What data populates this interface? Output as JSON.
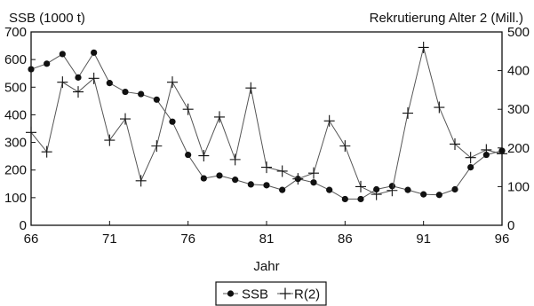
{
  "chart_data": {
    "type": "line",
    "title": "",
    "xlabel": "Jahr",
    "ylabel_left": "SSB (1000 t)",
    "ylabel_right": "Rekrutierung Alter 2 (Mill.)",
    "xlim": [
      66,
      96
    ],
    "ylim_left": [
      0,
      700
    ],
    "ylim_right": [
      0,
      500
    ],
    "x_ticks": [
      "66",
      "71",
      "76",
      "81",
      "86",
      "91",
      "96"
    ],
    "y_ticks_left": [
      "0",
      "100",
      "200",
      "300",
      "400",
      "500",
      "600",
      "700"
    ],
    "y_ticks_right": [
      "0",
      "100",
      "200",
      "300",
      "400",
      "500"
    ],
    "grid": false,
    "legend_position": "bottom-center",
    "x": [
      66,
      67,
      68,
      69,
      70,
      71,
      72,
      73,
      74,
      75,
      76,
      77,
      78,
      79,
      80,
      81,
      82,
      83,
      84,
      85,
      86,
      87,
      88,
      89,
      90,
      91,
      92,
      93,
      94,
      95,
      96
    ],
    "series": [
      {
        "name": "SSB",
        "axis": "left",
        "marker": "dot",
        "values": [
          565,
          585,
          620,
          535,
          625,
          515,
          483,
          475,
          455,
          375,
          255,
          170,
          180,
          165,
          148,
          145,
          128,
          168,
          155,
          128,
          95,
          95,
          130,
          142,
          128,
          112,
          110,
          130,
          210,
          255,
          270
        ]
      },
      {
        "name": "R(2)",
        "axis": "right",
        "marker": "plus",
        "values": [
          240,
          190,
          370,
          345,
          380,
          220,
          275,
          115,
          205,
          370,
          300,
          180,
          280,
          170,
          355,
          150,
          140,
          120,
          135,
          270,
          205,
          100,
          80,
          90,
          290,
          460,
          305,
          210,
          175,
          195,
          185
        ]
      }
    ]
  },
  "colors": {
    "line": "#555555",
    "marker": "#111111",
    "axis": "#111111"
  }
}
